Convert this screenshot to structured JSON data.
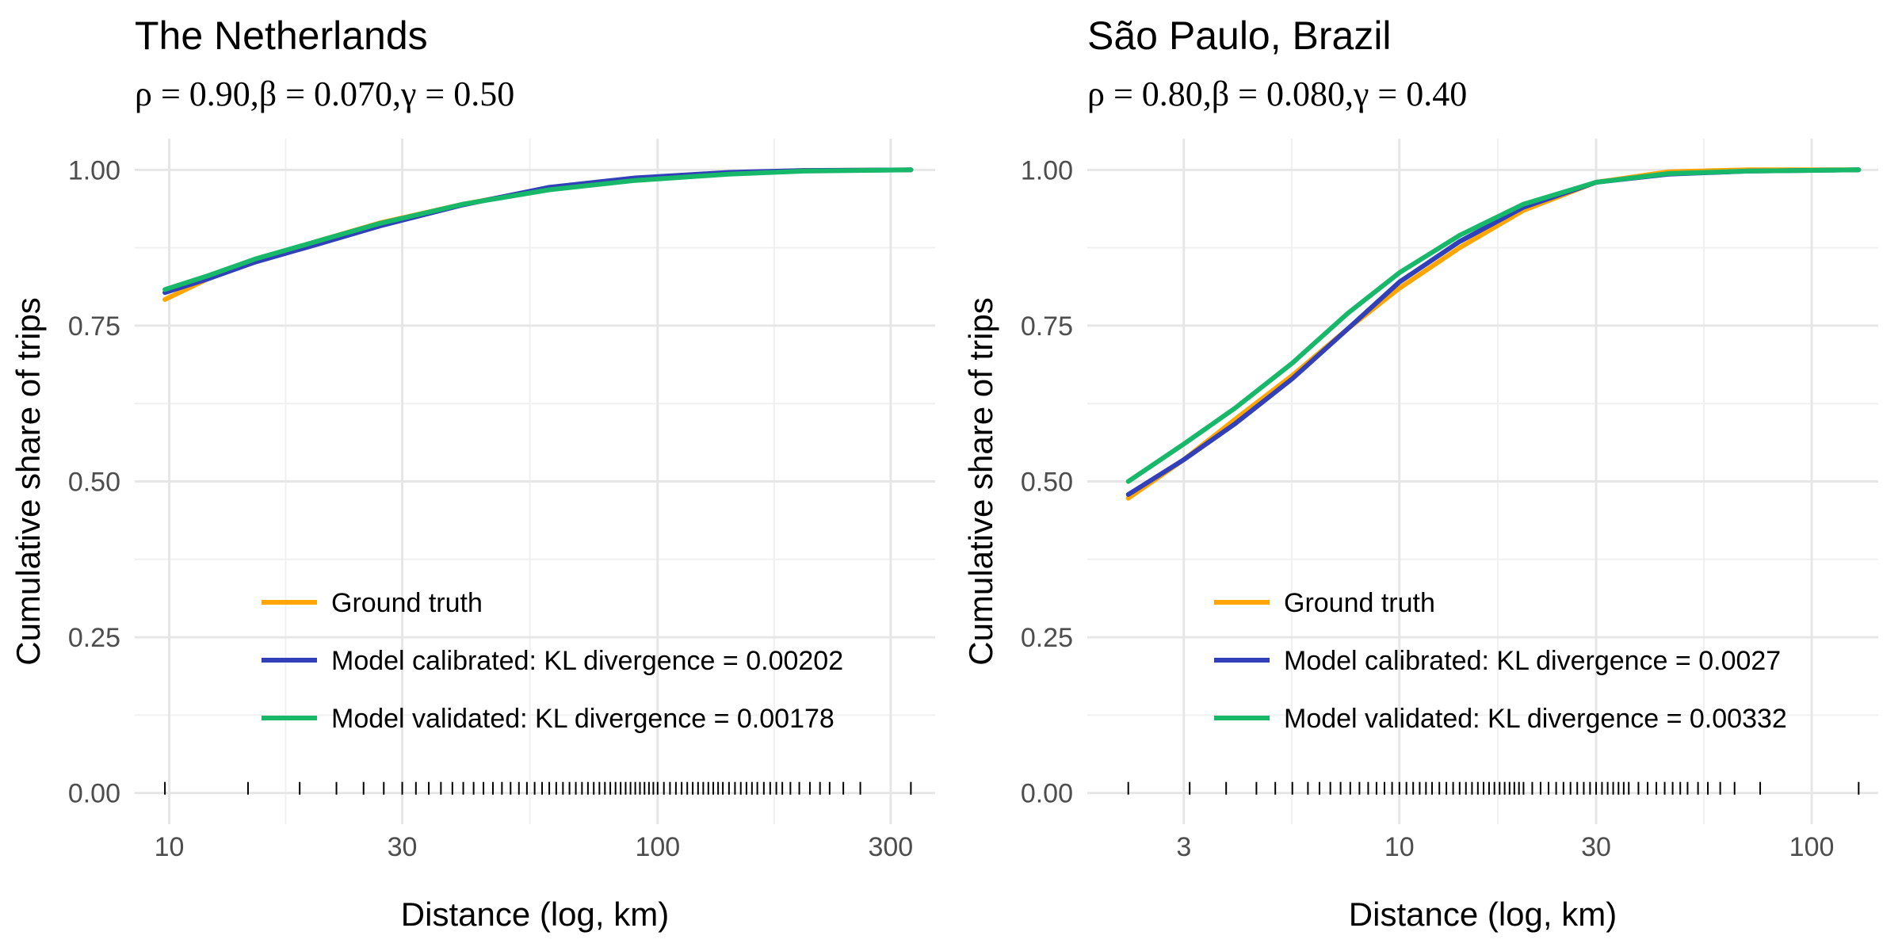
{
  "chart_data": [
    {
      "type": "line",
      "title": "The Netherlands",
      "subtitle": "ρ = 0.90,β = 0.070,γ = 0.50",
      "xlabel": "Distance (log, km)",
      "ylabel": "Cumulative share of trips",
      "x_scale": "log10",
      "xlim": [
        8.5,
        370
      ],
      "ylim": [
        -0.05,
        1.05
      ],
      "x_ticks": [
        10,
        30,
        100,
        300
      ],
      "x_tick_labels": [
        "10",
        "30",
        "100",
        "300"
      ],
      "y_ticks": [
        0,
        0.25,
        0.5,
        0.75,
        1.0
      ],
      "y_tick_labels": [
        "0.00",
        "0.25",
        "0.50",
        "0.75",
        "1.00"
      ],
      "grid": true,
      "legend_position": "bottom-center inside",
      "series": [
        {
          "name": "Ground truth",
          "color": "#FFA500",
          "points": [
            [
              9.8,
              0.792
            ],
            [
              12,
              0.825
            ],
            [
              15,
              0.855
            ],
            [
              20,
              0.885
            ],
            [
              27,
              0.915
            ],
            [
              40,
              0.945
            ],
            [
              60,
              0.97
            ],
            [
              90,
              0.985
            ],
            [
              140,
              0.995
            ],
            [
              200,
              0.999
            ],
            [
              330,
              1.0
            ]
          ]
        },
        {
          "name": "Model calibrated: KL divergence = 0.00202",
          "color": "#3140B8",
          "points": [
            [
              9.8,
              0.803
            ],
            [
              12,
              0.825
            ],
            [
              15,
              0.852
            ],
            [
              20,
              0.88
            ],
            [
              27,
              0.91
            ],
            [
              40,
              0.944
            ],
            [
              60,
              0.972
            ],
            [
              90,
              0.987
            ],
            [
              140,
              0.996
            ],
            [
              200,
              0.999
            ],
            [
              330,
              1.0
            ]
          ]
        },
        {
          "name": "Model validated: KL divergence = 0.00178",
          "color": "#18B86B",
          "points": [
            [
              9.8,
              0.808
            ],
            [
              12,
              0.83
            ],
            [
              15,
              0.857
            ],
            [
              20,
              0.885
            ],
            [
              27,
              0.914
            ],
            [
              40,
              0.945
            ],
            [
              60,
              0.968
            ],
            [
              90,
              0.983
            ],
            [
              140,
              0.993
            ],
            [
              200,
              0.998
            ],
            [
              330,
              1.0
            ]
          ]
        }
      ],
      "rug_x": [
        9.8,
        14.5,
        18.5,
        22,
        25,
        27.5,
        30,
        32,
        34,
        36,
        38,
        40,
        42,
        44,
        46,
        48,
        50,
        52,
        54,
        56,
        58,
        60,
        62,
        64,
        66,
        68,
        70,
        72,
        74,
        76,
        78,
        80,
        82,
        84,
        86,
        88,
        90,
        92,
        94,
        96,
        98,
        100,
        103,
        106,
        109,
        112,
        115,
        118,
        121,
        124,
        127,
        130,
        133,
        136,
        140,
        144,
        148,
        152,
        156,
        160,
        165,
        170,
        175,
        180,
        187,
        195,
        205,
        215,
        225,
        240,
        260,
        330
      ]
    },
    {
      "type": "line",
      "title": "São Paulo, Brazil",
      "subtitle": "ρ = 0.80,β = 0.080,γ = 0.40",
      "xlabel": "Distance (log, km)",
      "ylabel": "Cumulative share of trips",
      "x_scale": "log10",
      "xlim": [
        1.75,
        145
      ],
      "ylim": [
        -0.05,
        1.05
      ],
      "x_ticks": [
        3,
        10,
        30,
        100
      ],
      "x_tick_labels": [
        "3",
        "10",
        "30",
        "100"
      ],
      "y_ticks": [
        0,
        0.25,
        0.5,
        0.75,
        1.0
      ],
      "y_tick_labels": [
        "0.00",
        "0.25",
        "0.50",
        "0.75",
        "1.00"
      ],
      "grid": true,
      "legend_position": "bottom-center inside",
      "series": [
        {
          "name": "Ground truth",
          "color": "#FFA500",
          "points": [
            [
              2.2,
              0.473
            ],
            [
              3,
              0.535
            ],
            [
              4,
              0.6
            ],
            [
              5.5,
              0.67
            ],
            [
              7.5,
              0.745
            ],
            [
              10,
              0.81
            ],
            [
              14,
              0.875
            ],
            [
              20,
              0.935
            ],
            [
              30,
              0.98
            ],
            [
              45,
              0.997
            ],
            [
              70,
              1.0
            ],
            [
              130,
              1.0
            ]
          ]
        },
        {
          "name": "Model calibrated: KL divergence = 0.0027",
          "color": "#3140B8",
          "points": [
            [
              2.2,
              0.479
            ],
            [
              3,
              0.535
            ],
            [
              4,
              0.593
            ],
            [
              5.5,
              0.665
            ],
            [
              7.5,
              0.745
            ],
            [
              10,
              0.82
            ],
            [
              14,
              0.885
            ],
            [
              20,
              0.94
            ],
            [
              30,
              0.98
            ],
            [
              45,
              0.993
            ],
            [
              70,
              0.998
            ],
            [
              130,
              1.0
            ]
          ]
        },
        {
          "name": "Model validated: KL divergence = 0.00332",
          "color": "#18B86B",
          "points": [
            [
              2.2,
              0.5
            ],
            [
              3,
              0.56
            ],
            [
              4,
              0.618
            ],
            [
              5.5,
              0.69
            ],
            [
              7.5,
              0.77
            ],
            [
              10,
              0.835
            ],
            [
              14,
              0.895
            ],
            [
              20,
              0.945
            ],
            [
              30,
              0.98
            ],
            [
              45,
              0.994
            ],
            [
              70,
              0.998
            ],
            [
              130,
              1.0
            ]
          ]
        }
      ],
      "rug_x": [
        2.2,
        3.1,
        3.8,
        4.5,
        5,
        5.5,
        6,
        6.4,
        6.8,
        7.2,
        7.6,
        8,
        8.4,
        8.8,
        9.2,
        9.6,
        10,
        10.4,
        10.8,
        11.2,
        11.6,
        12,
        12.5,
        13,
        13.5,
        14,
        14.5,
        15,
        15.5,
        16,
        16.5,
        17,
        17.5,
        18,
        18.5,
        19,
        19.5,
        20,
        21,
        22,
        23,
        24,
        25,
        26,
        27,
        28,
        29,
        30,
        31,
        32,
        33,
        34,
        35,
        36,
        38,
        40,
        42,
        44,
        46,
        48,
        50,
        53,
        56,
        60,
        65,
        75,
        130
      ]
    }
  ]
}
